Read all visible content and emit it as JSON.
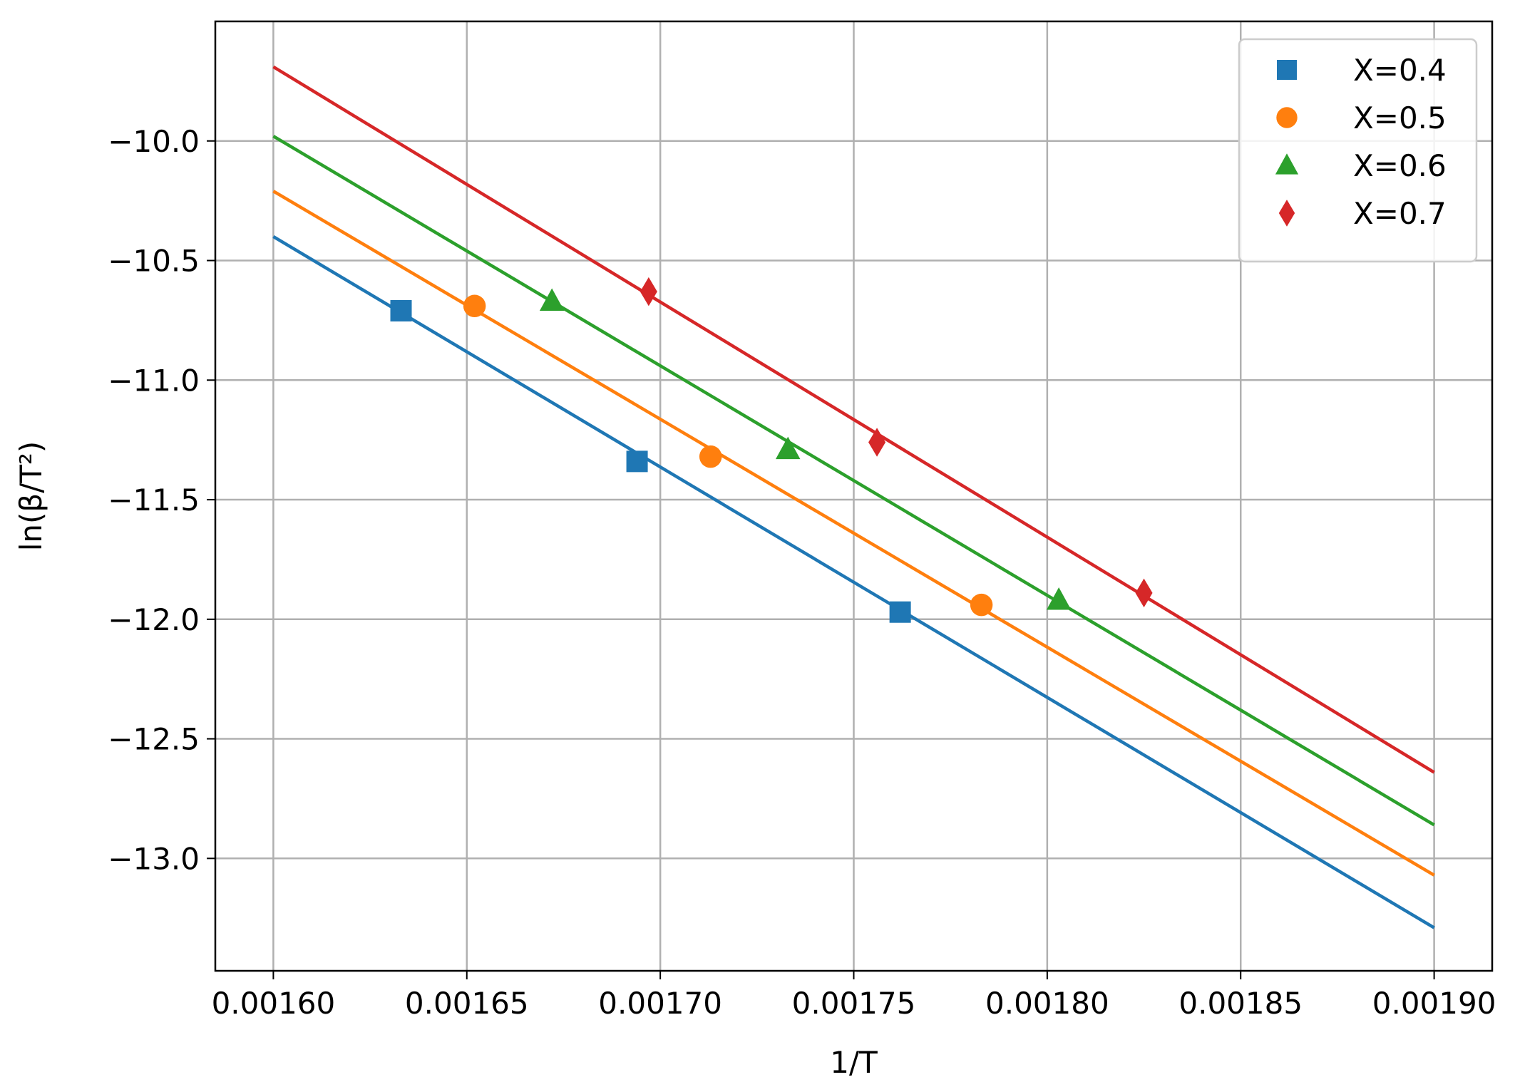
{
  "chart_data": {
    "type": "scatter",
    "title": "",
    "xlabel": "1/T",
    "ylabel": "ln(β/T²)",
    "xlim": [
      0.001585,
      0.001915
    ],
    "ylim": [
      -13.47,
      -9.5
    ],
    "xticks": [
      0.0016,
      0.00165,
      0.0017,
      0.00175,
      0.0018,
      0.00185,
      0.0019
    ],
    "xtick_labels": [
      "0.00160",
      "0.00165",
      "0.00170",
      "0.00175",
      "0.00180",
      "0.00185",
      "0.00190"
    ],
    "yticks": [
      -10.0,
      -10.5,
      -11.0,
      -11.5,
      -12.0,
      -12.5,
      -13.0
    ],
    "ytick_labels": [
      "−10.0",
      "−10.5",
      "−11.0",
      "−11.5",
      "−12.0",
      "−12.5",
      "−13.0"
    ],
    "grid": true,
    "legend": "top-right",
    "series": [
      {
        "name": "X=0.4",
        "color": "#1f77b4",
        "marker": "square",
        "points": [
          [
            0.001633,
            -10.71
          ],
          [
            0.001694,
            -11.34
          ],
          [
            0.001762,
            -11.97
          ]
        ],
        "fit": [
          [
            0.0016,
            -10.4
          ],
          [
            0.0019,
            -13.29
          ]
        ]
      },
      {
        "name": "X=0.5",
        "color": "#ff7f0e",
        "marker": "circle",
        "points": [
          [
            0.001652,
            -10.69
          ],
          [
            0.001713,
            -11.32
          ],
          [
            0.001783,
            -11.94
          ]
        ],
        "fit": [
          [
            0.0016,
            -10.21
          ],
          [
            0.0019,
            -13.07
          ]
        ]
      },
      {
        "name": "X=0.6",
        "color": "#2ca02c",
        "marker": "triangle",
        "points": [
          [
            0.001672,
            -10.67
          ],
          [
            0.001733,
            -11.29
          ],
          [
            0.001803,
            -11.92
          ]
        ],
        "fit": [
          [
            0.0016,
            -9.98
          ],
          [
            0.0019,
            -12.86
          ]
        ]
      },
      {
        "name": "X=0.7",
        "color": "#d62728",
        "marker": "diamond",
        "points": [
          [
            0.001697,
            -10.63
          ],
          [
            0.001756,
            -11.26
          ],
          [
            0.001825,
            -11.89
          ]
        ],
        "fit": [
          [
            0.0016,
            -9.69
          ],
          [
            0.0019,
            -12.64
          ]
        ]
      }
    ]
  }
}
